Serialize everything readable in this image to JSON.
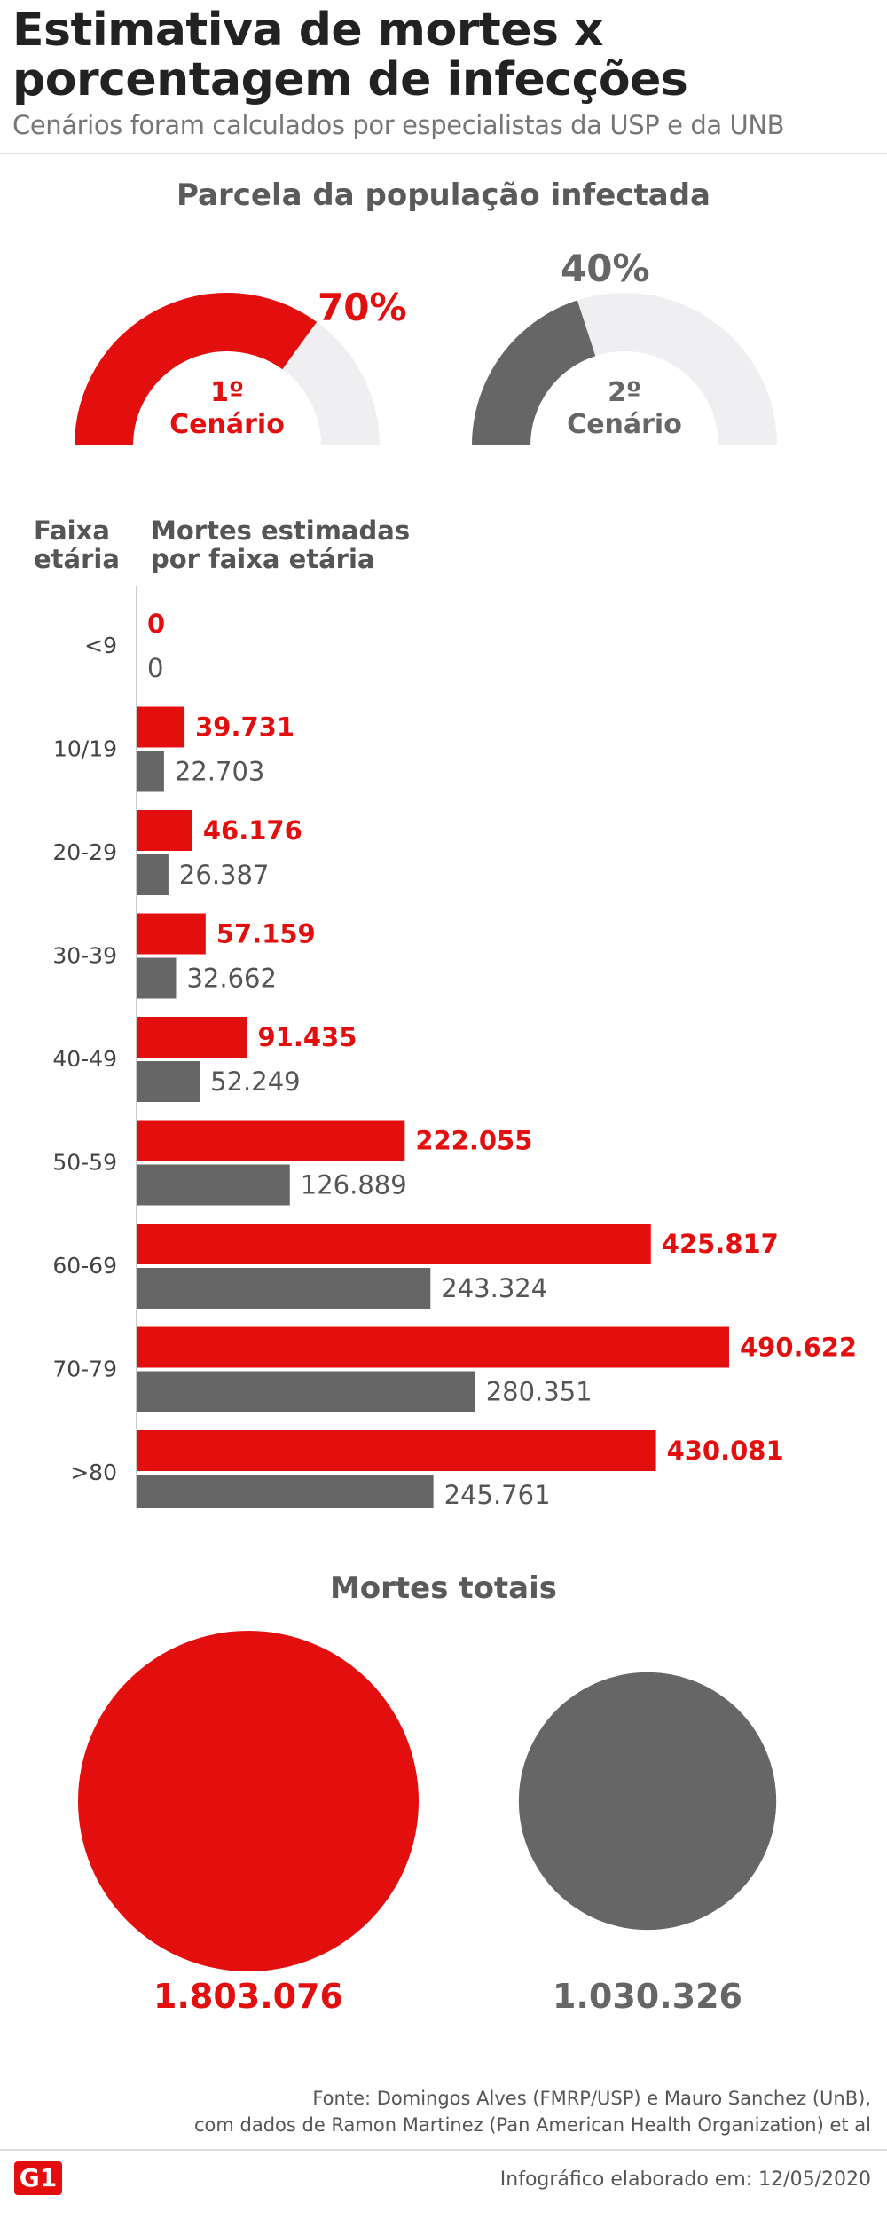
{
  "header": {
    "title": "Estimativa de mortes x porcentagem de infecções",
    "subtitle": "Cenários foram calculados por especialistas da USP e da UNB"
  },
  "colors": {
    "scenario1": "#e30f0f",
    "scenario2": "#666666",
    "track": "#efeff1"
  },
  "infected": {
    "title": "Parcela da população infectada",
    "scenario1": {
      "pct_label": "70%",
      "value": 0.7,
      "label_line1": "1º",
      "label_line2": "Cenário"
    },
    "scenario2": {
      "pct_label": "40%",
      "value": 0.4,
      "label_line1": "2º",
      "label_line2": "Cenário"
    }
  },
  "bars": {
    "col1_line1": "Faixa",
    "col1_line2": "etária",
    "col2_line1": "Mortes estimadas",
    "col2_line2": "por faixa etária"
  },
  "chart_data": {
    "type": "bar",
    "orientation": "horizontal",
    "categories": [
      "<9",
      "10/19",
      "20-29",
      "30-39",
      "40-49",
      "50-59",
      "60-69",
      "70-79",
      ">80"
    ],
    "series": [
      {
        "name": "1º Cenário",
        "color": "#e30f0f",
        "values": [
          0,
          39731,
          46176,
          57159,
          91435,
          222055,
          425817,
          490622,
          430081
        ],
        "labels": [
          "0",
          "39.731",
          "46.176",
          "57.159",
          "91.435",
          "222.055",
          "425.817",
          "490.622",
          "430.081"
        ]
      },
      {
        "name": "2º Cenário",
        "color": "#666666",
        "values": [
          0,
          22703,
          26387,
          32662,
          52249,
          126889,
          243324,
          280351,
          245761
        ],
        "labels": [
          "0",
          "22.703",
          "26.387",
          "32.662",
          "52.249",
          "126.889",
          "243.324",
          "280.351",
          "245.761"
        ]
      }
    ]
  },
  "totals": {
    "title": "Mortes totais",
    "scenario1": {
      "value": 1803076,
      "label": "1.803.076"
    },
    "scenario2": {
      "value": 1030326,
      "label": "1.030.326"
    }
  },
  "footer": {
    "source_line1": "Fonte: Domingos Alves (FMRP/USP) e Mauro Sanchez (UnB),",
    "source_line2": "com dados de Ramon Martinez (Pan American Health Organization) et al",
    "logo_text": "G1",
    "credit": "Infográfico elaborado em: 12/05/2020"
  }
}
